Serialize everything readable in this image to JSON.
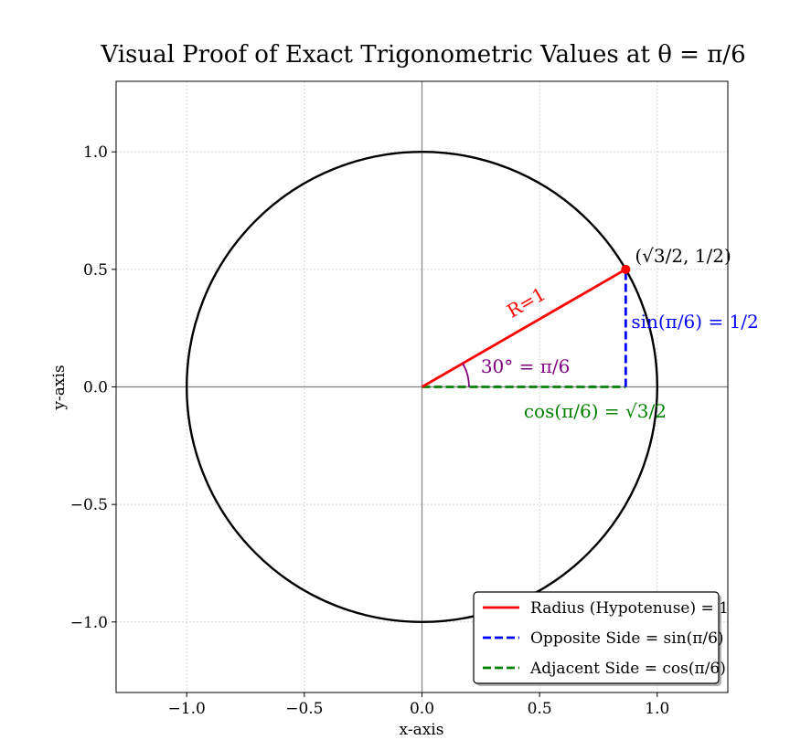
{
  "chart_data": {
    "type": "line",
    "title": "Visual Proof of Exact Trigonometric Values at θ = π/6",
    "xlabel": "x-axis",
    "ylabel": "y-axis",
    "xlim": [
      -1.3,
      1.3
    ],
    "ylim": [
      -1.3,
      1.3
    ],
    "grid": true,
    "aspect": "equal",
    "x_ticks": [
      -1.0,
      -0.5,
      0.0,
      0.5,
      1.0
    ],
    "y_ticks": [
      -1.0,
      -0.5,
      0.0,
      0.5,
      1.0
    ],
    "x_tick_labels": [
      "−1.0",
      "−0.5",
      "0.0",
      "0.5",
      "1.0"
    ],
    "y_tick_labels": [
      "−1.0",
      "−0.5",
      "0.0",
      "0.5",
      "1.0"
    ],
    "unit_circle": {
      "center": [
        0,
        0
      ],
      "radius": 1,
      "color": "#000000"
    },
    "theta_rad": 0.5235987756,
    "series": [
      {
        "name": "Radius (Hypotenuse) = 1",
        "color": "#ff0000",
        "dash": "solid",
        "x": [
          0,
          0.8660254
        ],
        "y": [
          0,
          0.5
        ]
      },
      {
        "name": "Opposite Side = sin(π/6)",
        "color": "#0000ff",
        "dash": "dashed",
        "x": [
          0.8660254,
          0.8660254
        ],
        "y": [
          0,
          0.5
        ]
      },
      {
        "name": "Adjacent Side = cos(π/6)",
        "color": "#008000",
        "dash": "dashed",
        "x": [
          0,
          0.8660254
        ],
        "y": [
          0,
          0
        ]
      }
    ],
    "point": {
      "x": 0.8660254,
      "y": 0.5,
      "color": "#ff0000"
    },
    "annotations": {
      "point_label": "(√3/2, 1/2)",
      "radius_label": "R=1",
      "angle_label": "30° = π/6",
      "sin_label": "sin(π/6) = 1/2",
      "cos_label": "cos(π/6) = √3/2"
    },
    "legend_location": "lower-right"
  }
}
